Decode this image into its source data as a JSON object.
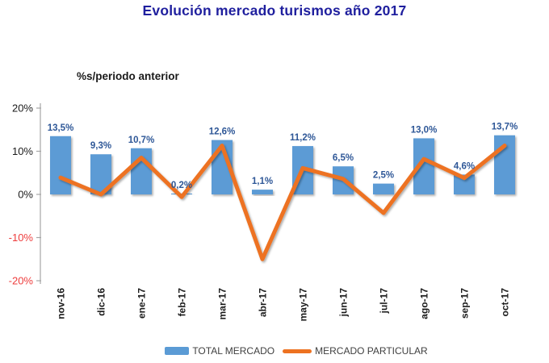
{
  "chart_data": {
    "type": "bar+line",
    "title": "Evolución mercado turismos año 2017",
    "title_color": "#1f1f9e",
    "subtitle": "%s/periodo anterior",
    "categories": [
      "nov-16",
      "dic-16",
      "ene-17",
      "feb-17",
      "mar-17",
      "abr-17",
      "may-17",
      "jun-17",
      "jul-17",
      "ago-17",
      "sep-17",
      "oct-17"
    ],
    "series": [
      {
        "name": "TOTAL MERCADO",
        "type": "bar",
        "color": "#5b9bd5",
        "values": [
          13.5,
          9.3,
          10.7,
          0.2,
          12.6,
          1.1,
          11.2,
          6.5,
          2.5,
          13.0,
          4.6,
          13.7
        ],
        "data_labels": [
          "13,5%",
          "9,3%",
          "10,7%",
          "0,2%",
          "12,6%",
          "1,1%",
          "11,2%",
          "6,5%",
          "2,5%",
          "13,0%",
          "4,6%",
          "13,7%"
        ],
        "label_color": "#2e5797"
      },
      {
        "name": "MERCADO PARTICULAR",
        "type": "line",
        "color": "#ed7221",
        "values": [
          3.9,
          0.0,
          8.5,
          -0.6,
          11.3,
          -15.0,
          6.1,
          3.6,
          -4.3,
          8.2,
          3.8,
          11.3
        ]
      }
    ],
    "ylim": [
      -20,
      20
    ],
    "yticks": [
      {
        "label": "20%",
        "value": 20,
        "color": "#1a1a1a"
      },
      {
        "label": "10%",
        "value": 10,
        "color": "#1a1a1a"
      },
      {
        "label": "0%",
        "value": 0,
        "color": "#1a1a1a"
      },
      {
        "label": "-10%",
        "value": -10,
        "color": "#ee3d3d"
      },
      {
        "label": "-20%",
        "value": -20,
        "color": "#ee3d3d"
      }
    ],
    "grid": false,
    "legend_position": "bottom",
    "axis_color": "#a6a6a6",
    "xlabel_color": "#1a1a1a"
  }
}
